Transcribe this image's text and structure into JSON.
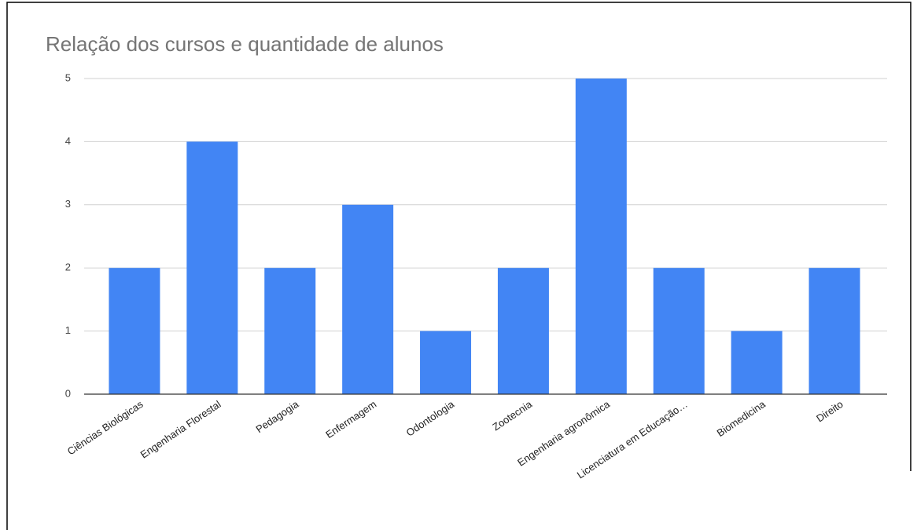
{
  "chart_data": {
    "type": "bar",
    "title": "Relação dos cursos e quantidade de alunos",
    "categories": [
      "Ciências Biológicas",
      "Engenharia Florestal",
      "Pedagogia",
      "Enfermagem",
      "Odontologia",
      "Zootecnia",
      "Engenharia agronômica",
      "Licenciatura em Educação…",
      "Biomedicina",
      "Direito"
    ],
    "values": [
      2,
      4,
      2,
      3,
      1,
      2,
      5,
      2,
      1,
      2
    ],
    "color": "#4285f4",
    "ylim": [
      0,
      5
    ],
    "yticks": [
      0,
      1,
      2,
      3,
      4,
      5
    ],
    "grid": true
  }
}
